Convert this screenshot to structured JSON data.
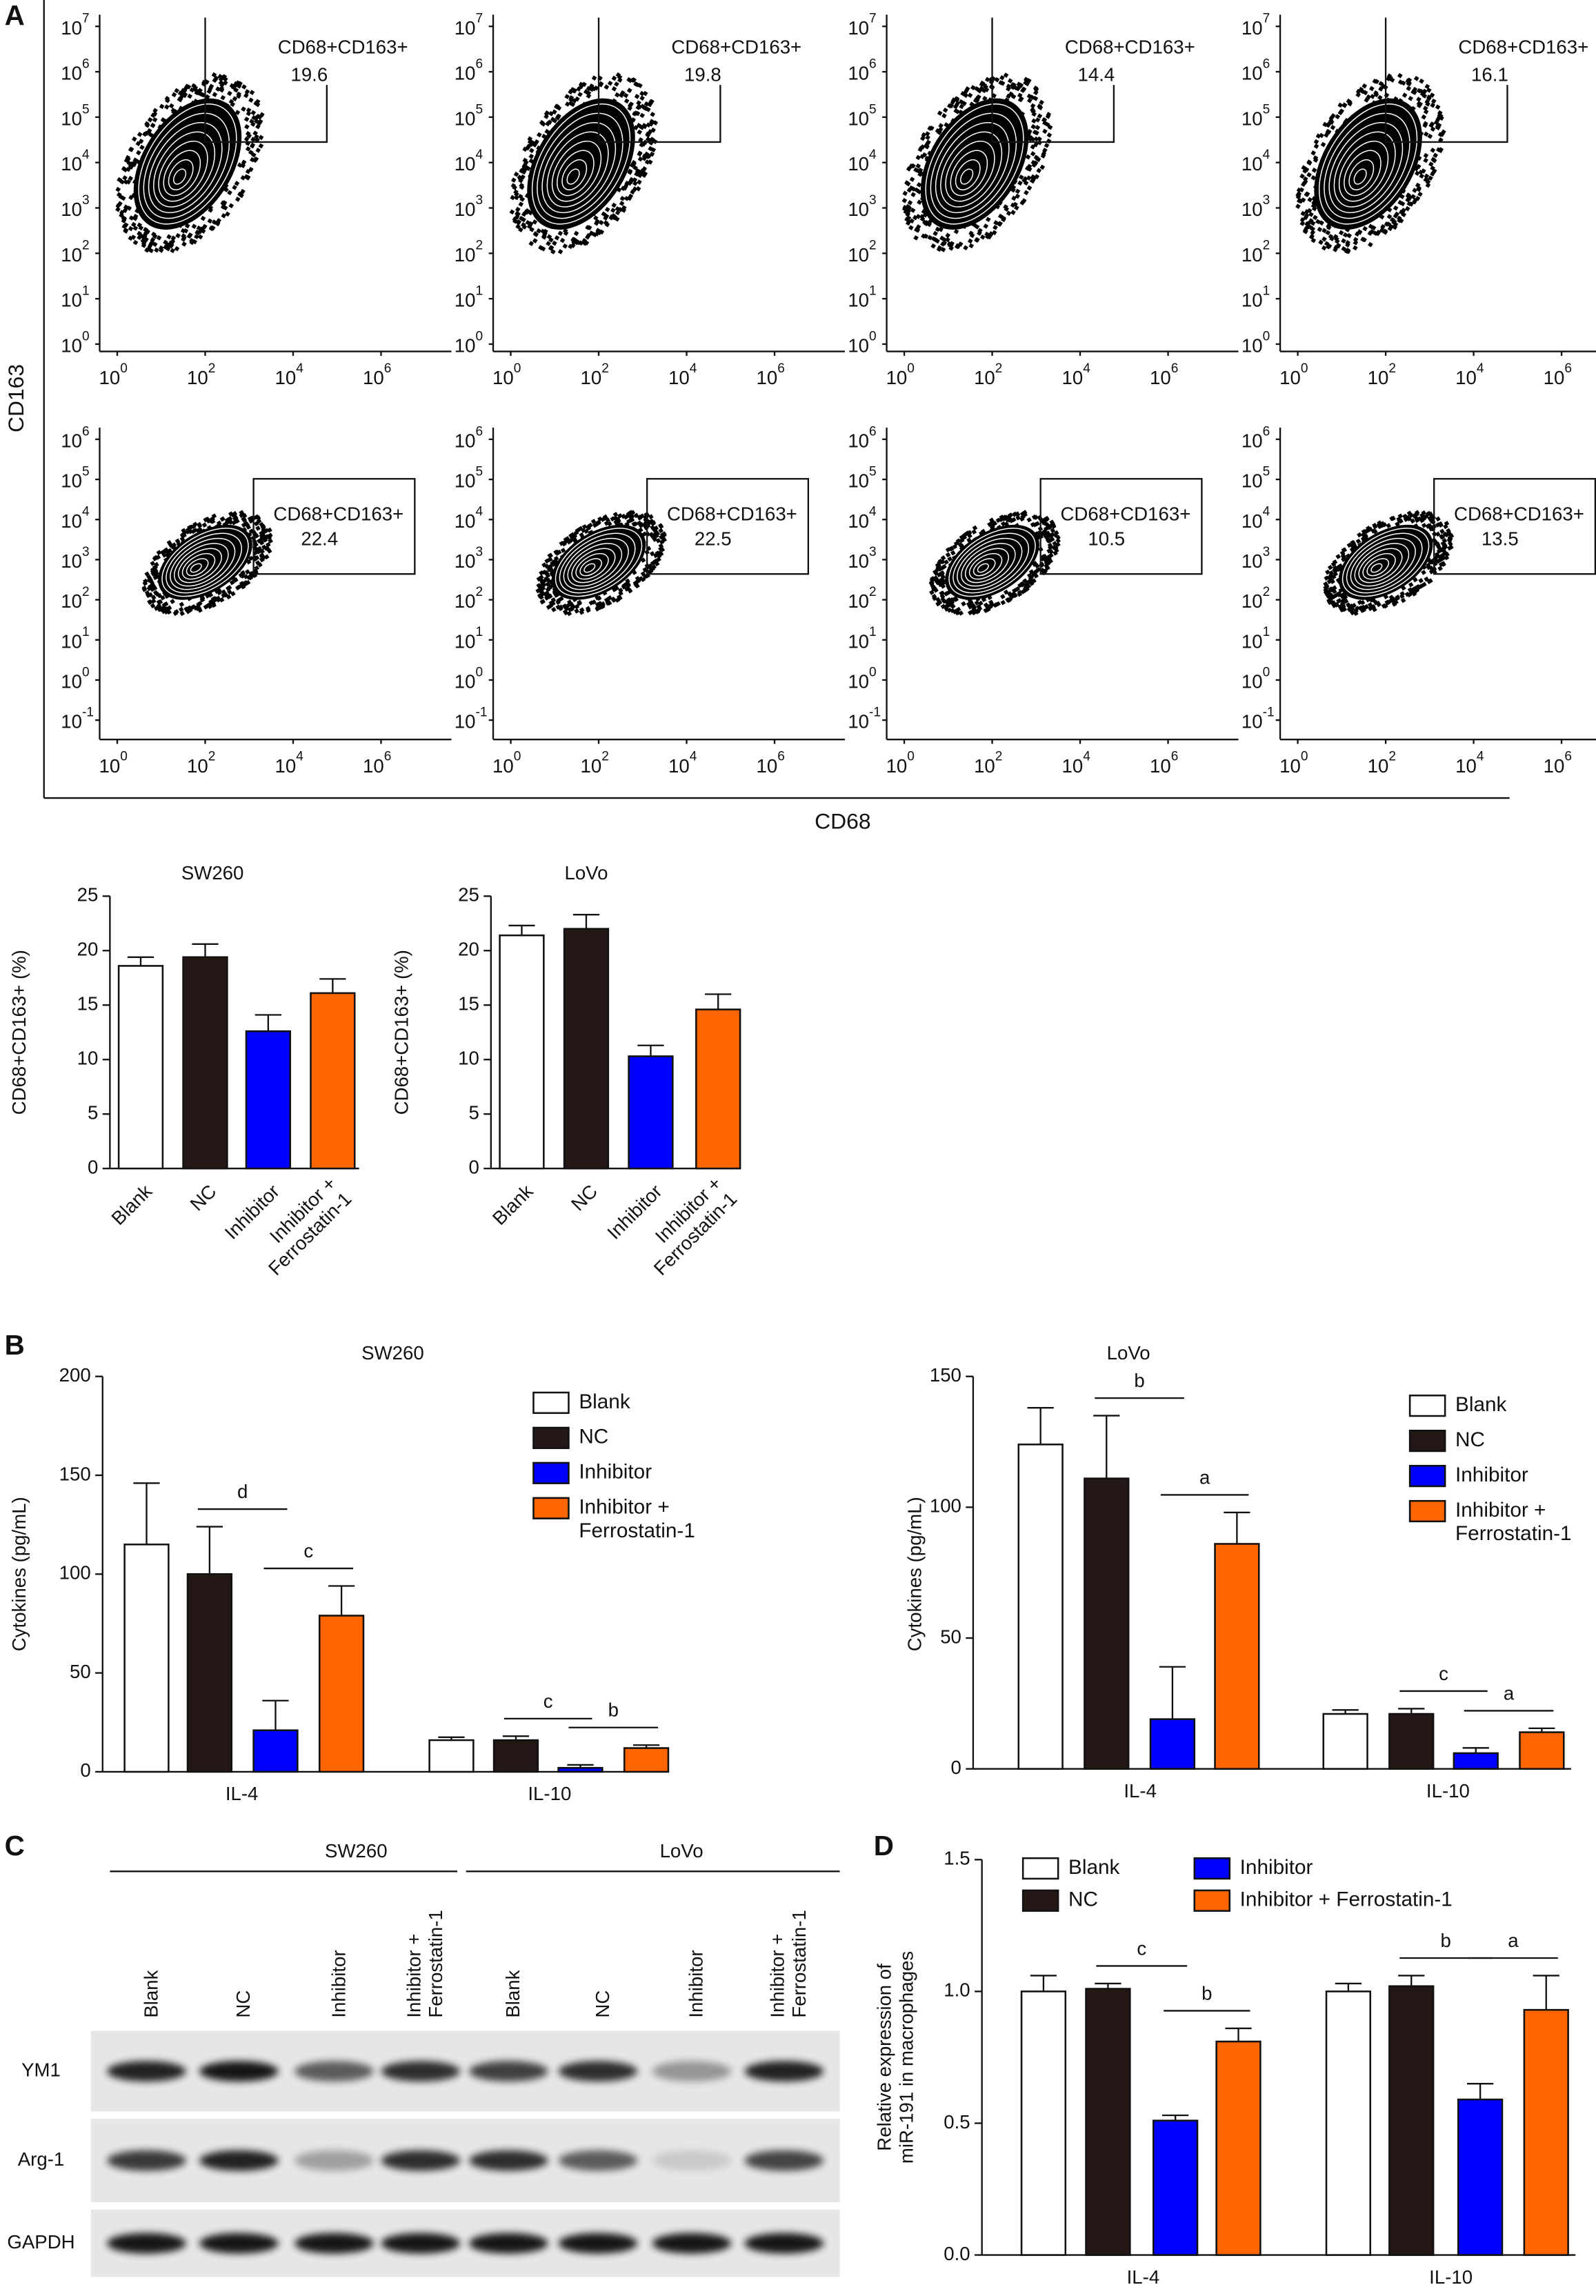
{
  "panel_labels": [
    "A",
    "B",
    "C",
    "D"
  ],
  "flow": {
    "y_label": "CD163",
    "x_label": "CD68",
    "tick_base": "10",
    "x_exps": [
      "0",
      "2",
      "4",
      "6"
    ],
    "y_exps": [
      [
        "7",
        "6",
        "5",
        "4",
        "3",
        "2",
        "1",
        "0"
      ],
      [
        "6",
        "5",
        "4",
        "3",
        "2",
        "1",
        "0",
        "-1"
      ]
    ],
    "gate_label": "CD68+CD163+",
    "percent": [
      [
        19.6,
        19.8,
        14.4,
        16.1
      ],
      [
        22.4,
        22.5,
        10.5,
        13.5
      ]
    ]
  },
  "blot": {
    "groups": [
      "SW260",
      "LoVo"
    ],
    "lanes": [
      "Blank",
      "NC",
      "Inhibitor",
      "Inhibitor +\nFerrostatin-1",
      "Blank",
      "NC",
      "Inhibitor",
      "Inhibitor +\nFerrostatin-1"
    ],
    "rows": [
      "YM1",
      "Arg-1",
      "GAPDH"
    ]
  },
  "chart_data": [
    {
      "type": "bar",
      "title": "SW260",
      "y_label": "CD68+CD163+ (%)",
      "categories": [
        "Blank",
        "NC",
        "Inhibitor",
        "Inhibitor +\nFerrostatin-1"
      ],
      "values": [
        18.6,
        19.4,
        12.6,
        16.1
      ],
      "errors": [
        0.8,
        1.2,
        1.5,
        1.3
      ],
      "colors": [
        "#ffffff",
        "#231815",
        "#0000ff",
        "#ff6600"
      ],
      "ylim": [
        0,
        25
      ],
      "yticks": [
        0,
        5,
        10,
        15,
        20,
        25
      ]
    },
    {
      "type": "bar",
      "title": "LoVo",
      "y_label": "CD68+CD163+ (%)",
      "categories": [
        "Blank",
        "NC",
        "Inhibitor",
        "Inhibitor +\nFerrostatin-1"
      ],
      "values": [
        21.4,
        22.0,
        10.3,
        14.6
      ],
      "errors": [
        0.9,
        1.3,
        1.0,
        1.4
      ],
      "colors": [
        "#ffffff",
        "#231815",
        "#0000ff",
        "#ff6600"
      ],
      "ylim": [
        0,
        25
      ],
      "yticks": [
        0,
        5,
        10,
        15,
        20,
        25
      ]
    },
    {
      "type": "bar",
      "title": "SW260",
      "y_label": "Cytokines (pg/mL)",
      "categories": [
        "IL-4",
        "IL-10"
      ],
      "series": [
        {
          "name": "Blank",
          "color": "#ffffff",
          "values": [
            115,
            16
          ],
          "errors": [
            31,
            1.5
          ]
        },
        {
          "name": "NC",
          "color": "#231815",
          "values": [
            100,
            16
          ],
          "errors": [
            24,
            2
          ]
        },
        {
          "name": "Inhibitor",
          "color": "#0000ff",
          "values": [
            21,
            2
          ],
          "errors": [
            15,
            1.5
          ]
        },
        {
          "name": "Inhibitor +\nFerrostatin-1",
          "color": "#ff6600",
          "values": [
            79,
            12
          ],
          "errors": [
            15,
            1.5
          ]
        }
      ],
      "annotations": [
        {
          "text": "d",
          "category": 0,
          "bars": [
            1,
            2
          ]
        },
        {
          "text": "c",
          "category": 0,
          "bars": [
            2,
            3
          ]
        },
        {
          "text": "c",
          "category": 1,
          "bars": [
            1,
            2
          ]
        },
        {
          "text": "b",
          "category": 1,
          "bars": [
            2,
            3
          ]
        }
      ],
      "ylim": [
        0,
        200
      ],
      "yticks": [
        0,
        50,
        100,
        150,
        200
      ]
    },
    {
      "type": "bar",
      "title": "LoVo",
      "y_label": "Cytokines (pg/mL)",
      "categories": [
        "IL-4",
        "IL-10"
      ],
      "series": [
        {
          "name": "Blank",
          "color": "#ffffff",
          "values": [
            124,
            21
          ],
          "errors": [
            14,
            1.5
          ]
        },
        {
          "name": "NC",
          "color": "#231815",
          "values": [
            111,
            21
          ],
          "errors": [
            24,
            2
          ]
        },
        {
          "name": "Inhibitor",
          "color": "#0000ff",
          "values": [
            19,
            6
          ],
          "errors": [
            20,
            2
          ]
        },
        {
          "name": "Inhibitor +\nFerrostatin-1",
          "color": "#ff6600",
          "values": [
            86,
            14
          ],
          "errors": [
            12,
            1.5
          ]
        }
      ],
      "annotations": [
        {
          "text": "b",
          "category": 0,
          "bars": [
            1,
            2
          ]
        },
        {
          "text": "a",
          "category": 0,
          "bars": [
            2,
            3
          ]
        },
        {
          "text": "c",
          "category": 1,
          "bars": [
            1,
            2
          ]
        },
        {
          "text": "a",
          "category": 1,
          "bars": [
            2,
            3
          ]
        }
      ],
      "ylim": [
        0,
        150
      ],
      "yticks": [
        0,
        50,
        100,
        150
      ]
    },
    {
      "type": "bar",
      "y_label": "Relative expression of\nmiR-191 in macrophages",
      "categories": [
        "IL-4",
        "IL-10"
      ],
      "series": [
        {
          "name": "Blank",
          "color": "#ffffff",
          "values": [
            1.0,
            1.0
          ],
          "errors": [
            0.06,
            0.03
          ]
        },
        {
          "name": "NC",
          "color": "#231815",
          "values": [
            1.01,
            1.02
          ],
          "errors": [
            0.02,
            0.04
          ]
        },
        {
          "name": "Inhibitor",
          "color": "#0000ff",
          "values": [
            0.51,
            0.59
          ],
          "errors": [
            0.02,
            0.06
          ]
        },
        {
          "name": "Inhibitor + Ferrostatin-1",
          "color": "#ff6600",
          "values": [
            0.81,
            0.93
          ],
          "errors": [
            0.05,
            0.13
          ]
        }
      ],
      "annotations": [
        {
          "text": "c",
          "category": 0,
          "bars": [
            1,
            2
          ]
        },
        {
          "text": "b",
          "category": 0,
          "bars": [
            2,
            3
          ]
        },
        {
          "text": "b",
          "category": 1,
          "bars": [
            1,
            2
          ]
        },
        {
          "text": "a",
          "category": 1,
          "bars": [
            2,
            3
          ]
        }
      ],
      "ylim": [
        0,
        1.5
      ],
      "yticks": [
        {
          "value": 0,
          "label": "0.0"
        },
        0.5,
        {
          "value": 1,
          "label": "1.0"
        },
        1.5
      ]
    }
  ]
}
